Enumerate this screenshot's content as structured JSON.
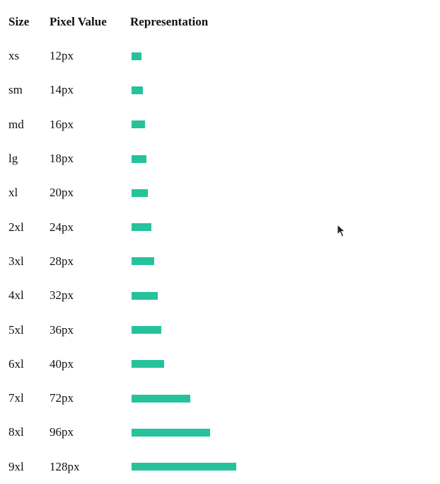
{
  "table": {
    "headers": {
      "size": "Size",
      "pixel_value": "Pixel Value",
      "representation": "Representation"
    },
    "bar_color": "#26c29c",
    "rows": [
      {
        "size": "xs",
        "pixel_value": "12px",
        "value": 12
      },
      {
        "size": "sm",
        "pixel_value": "14px",
        "value": 14
      },
      {
        "size": "md",
        "pixel_value": "16px",
        "value": 16
      },
      {
        "size": "lg",
        "pixel_value": "18px",
        "value": 18
      },
      {
        "size": "xl",
        "pixel_value": "20px",
        "value": 20
      },
      {
        "size": "2xl",
        "pixel_value": "24px",
        "value": 24
      },
      {
        "size": "3xl",
        "pixel_value": "28px",
        "value": 28
      },
      {
        "size": "4xl",
        "pixel_value": "32px",
        "value": 32
      },
      {
        "size": "5xl",
        "pixel_value": "36px",
        "value": 36
      },
      {
        "size": "6xl",
        "pixel_value": "40px",
        "value": 40
      },
      {
        "size": "7xl",
        "pixel_value": "72px",
        "value": 72
      },
      {
        "size": "8xl",
        "pixel_value": "96px",
        "value": 96
      },
      {
        "size": "9xl",
        "pixel_value": "128px",
        "value": 128
      }
    ]
  },
  "cursor": {
    "icon": "mouse-pointer-icon"
  }
}
